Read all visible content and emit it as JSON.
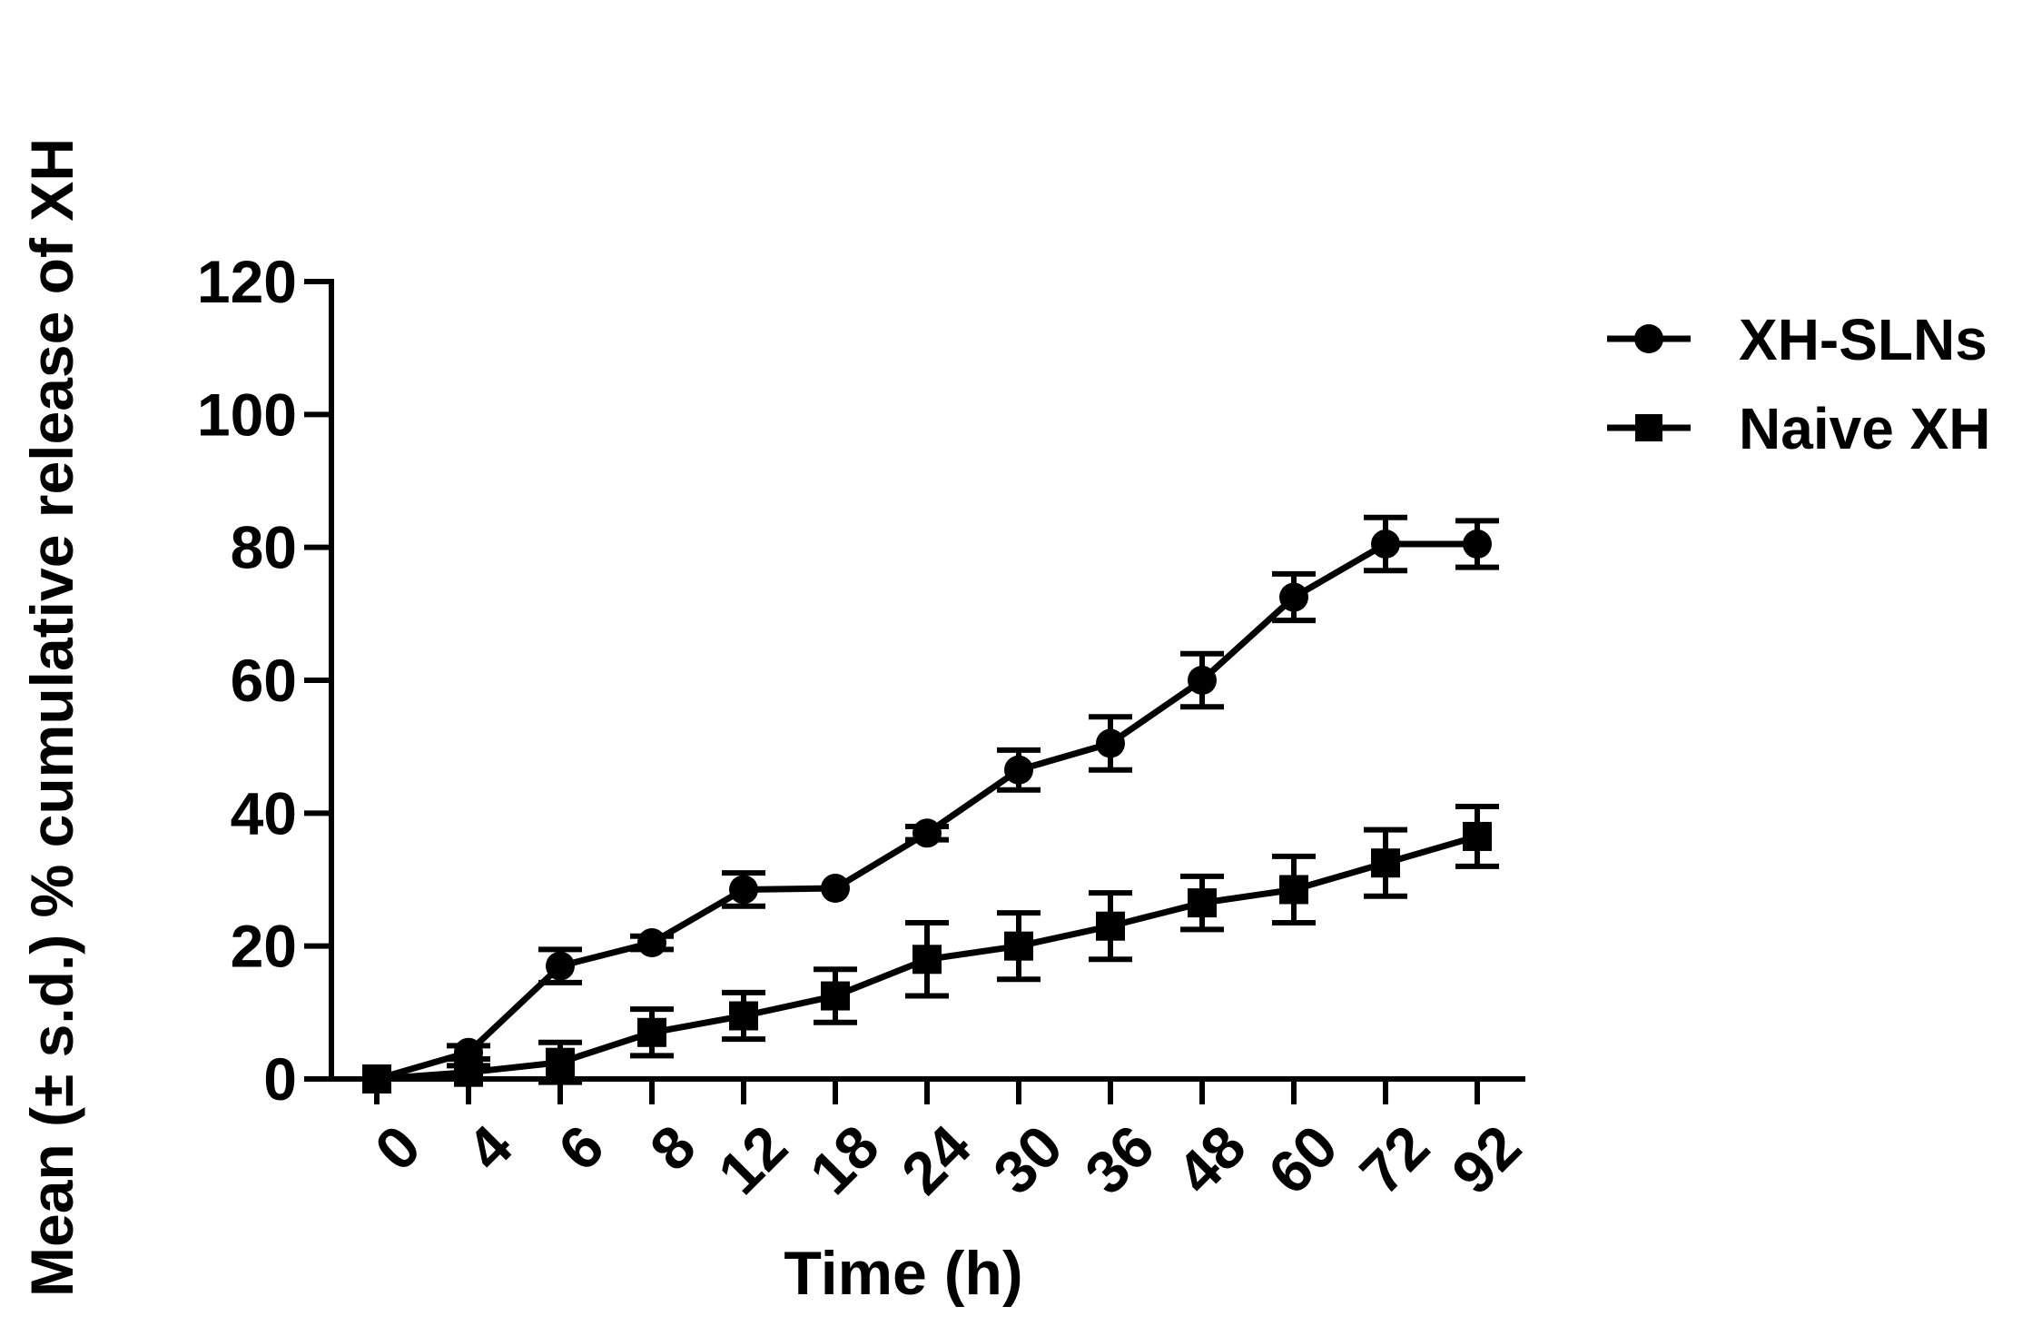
{
  "chart_data": {
    "type": "line",
    "title": "",
    "xlabel": "Time (h)",
    "ylabel": "Mean (± s.d.) % cumulative release of XH",
    "x_scale": "categorical",
    "categories": [
      "0",
      "4",
      "6",
      "8",
      "12",
      "18",
      "24",
      "30",
      "36",
      "48",
      "60",
      "72",
      "92"
    ],
    "ylim": [
      0,
      120
    ],
    "yticks": [
      0,
      20,
      40,
      60,
      80,
      100,
      120
    ],
    "grid": false,
    "legend": "right",
    "series": [
      {
        "name": "XH-SLNs",
        "marker": "circle",
        "color": "#000000",
        "values": [
          0,
          4,
          17,
          20.5,
          28.5,
          28.7,
          37,
          46.5,
          50.5,
          60,
          72.5,
          80.5,
          80.5
        ],
        "errors": [
          0.5,
          1,
          2.5,
          1,
          2.5,
          0.5,
          1,
          3,
          4,
          4,
          3.5,
          4,
          3.5
        ]
      },
      {
        "name": "Naive XH",
        "marker": "square",
        "color": "#000000",
        "values": [
          0,
          1,
          2.5,
          7,
          9.5,
          12.5,
          18,
          20,
          23,
          26.5,
          28.5,
          32.5,
          36.5
        ],
        "errors": [
          0.5,
          1,
          3,
          3.5,
          3.5,
          4,
          5.5,
          5,
          5,
          4,
          5,
          5,
          4.5
        ]
      }
    ]
  }
}
